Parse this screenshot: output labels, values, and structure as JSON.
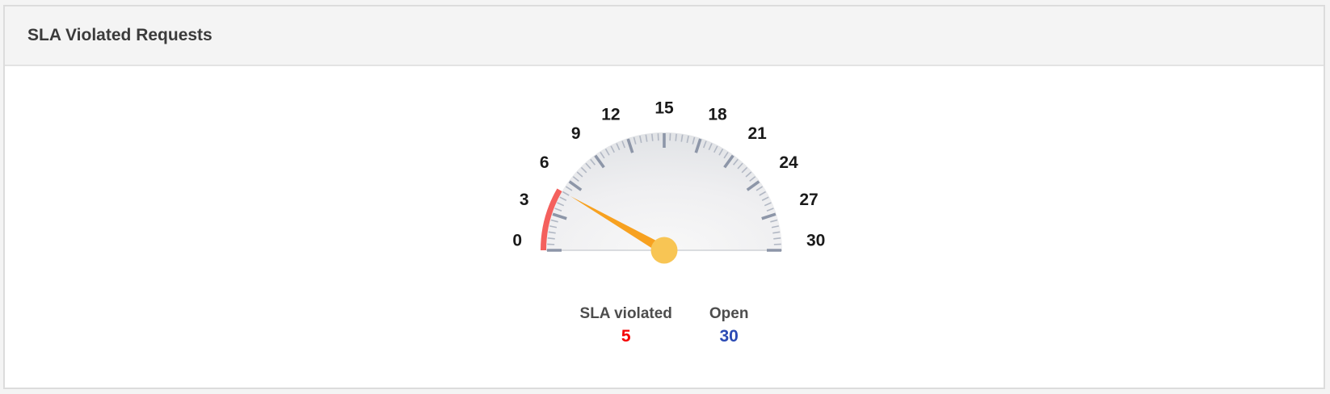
{
  "header": {
    "title": "SLA Violated Requests"
  },
  "chart_data": {
    "type": "gauge",
    "title": "SLA Violated Requests",
    "min": 0,
    "max": 30,
    "major_tick_step": 3,
    "minor_tick_step": 0.5,
    "tick_labels": [
      0,
      3,
      6,
      9,
      12,
      15,
      18,
      21,
      24,
      27,
      30
    ],
    "needle_value": 5,
    "violated_arc": {
      "from": 0,
      "to": 5
    },
    "series": [
      {
        "name": "SLA violated",
        "value": 5,
        "color": "#f50000"
      },
      {
        "name": "Open",
        "value": 30,
        "color": "#2b4ab4"
      }
    ],
    "colors": {
      "arc": "#f4605d",
      "needle": "#f7a120",
      "hub": "#f8c554",
      "major_tick": "#8d96a8",
      "minor_tick": "#b2b8c4",
      "face_center": "#f8f8f8",
      "face_mid": "#efeff1",
      "face_edge": "#e1e3e6",
      "baseline": "#cfd2d6"
    },
    "legend_position": "bottom",
    "grid": false
  }
}
